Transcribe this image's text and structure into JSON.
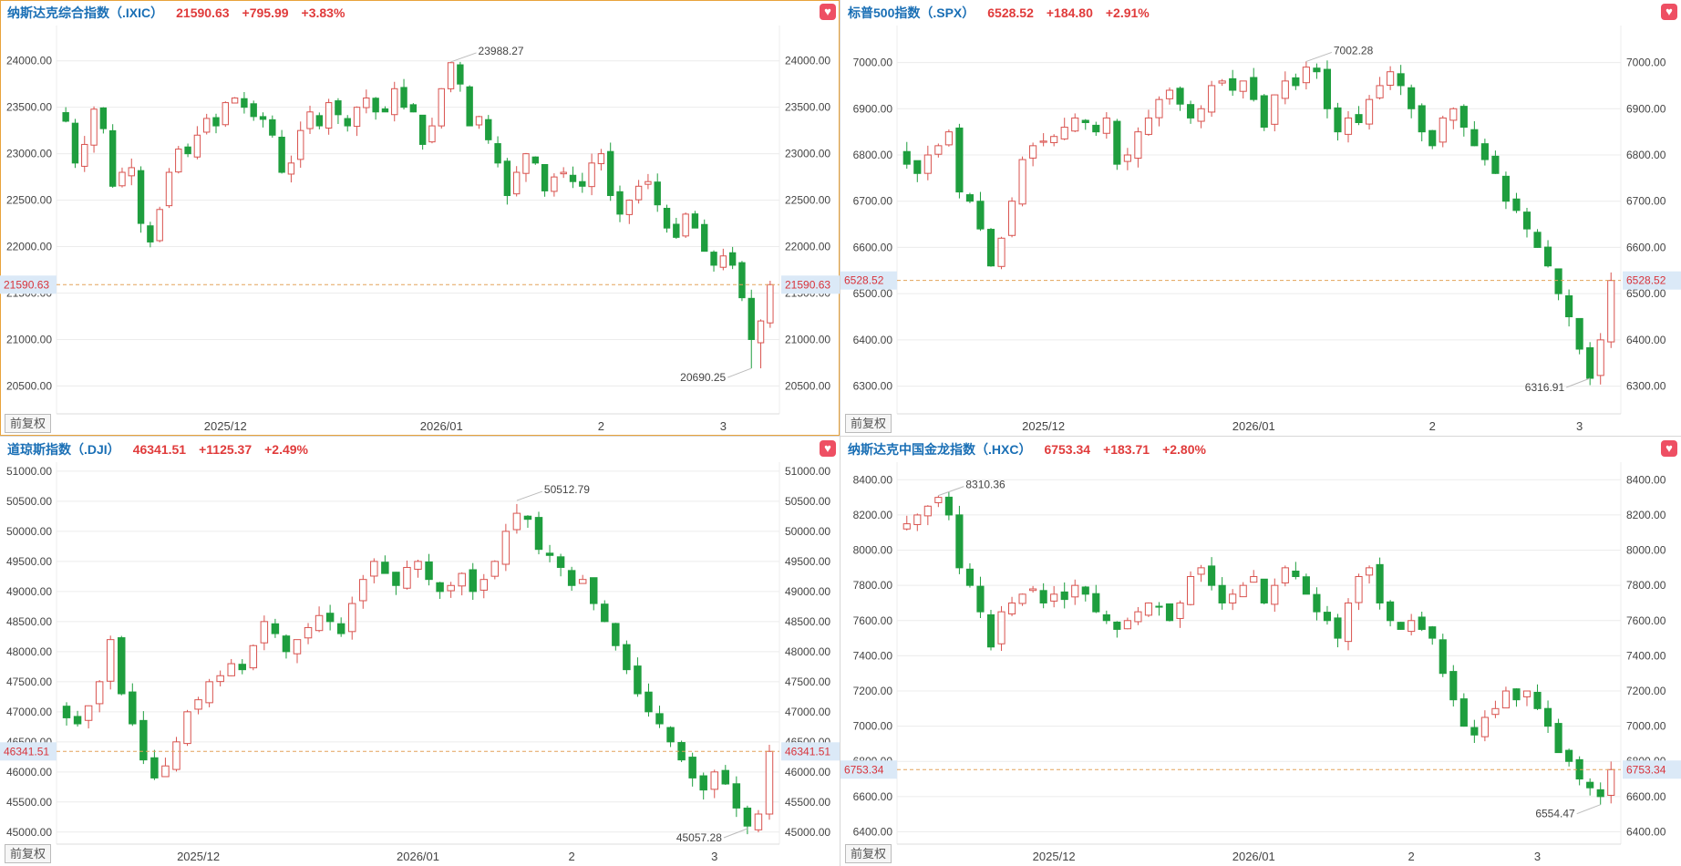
{
  "colors": {
    "up": "#d9534f",
    "down": "#1e9e3e",
    "accent": "#1a6fb5",
    "price_text": "#e03b3b",
    "grid": "#ececec",
    "current_line": "#e3a25a",
    "selected_border": "#e8a33c"
  },
  "controls": {
    "adjust_label": "前复权",
    "favorite_icon": "heart-icon"
  },
  "panels": [
    {
      "header": {
        "name": "纳斯达克综合指数（.IXIC）",
        "price": "21590.63",
        "change": "+795.99",
        "percent": "+3.83%"
      },
      "chart_data": {
        "type": "candlestick",
        "x_labels": [
          "2025/12",
          "2026/01",
          "2",
          "3"
        ],
        "y_ticks": [
          "24000.00",
          "23500.00",
          "23000.00",
          "22500.00",
          "22000.00",
          "21500.00",
          "21000.00",
          "20500.00"
        ],
        "ylim": [
          20200,
          24380
        ],
        "current": 21590.63,
        "current_label": "21590.63",
        "high": 23988.27,
        "high_label": "23988.27",
        "low": 20690.25,
        "low_label": "20690.25",
        "closes": [
          23350,
          22900,
          23100,
          23480,
          23270,
          22650,
          22800,
          22850,
          22250,
          22050,
          22400,
          22800,
          23050,
          23000,
          23200,
          23380,
          23300,
          23550,
          23600,
          23500,
          23400,
          23370,
          23200,
          22800,
          22900,
          23250,
          23450,
          23300,
          23550,
          23420,
          23300,
          23500,
          23600,
          23450,
          23450,
          23700,
          23500,
          23450,
          23100,
          23300,
          23700,
          23980,
          23750,
          23300,
          23400,
          23150,
          22900,
          22550,
          22800,
          23000,
          22900,
          22600,
          22750,
          22800,
          22700,
          22650,
          22900,
          23000,
          22550,
          22350,
          22500,
          22650,
          22700,
          22450,
          22200,
          22100,
          22350,
          22200,
          21950,
          21800,
          21900,
          21800,
          21450,
          21000,
          21200,
          21590.63
        ],
        "x_label_index": [
          17,
          40,
          57,
          70
        ]
      }
    },
    {
      "header": {
        "name": "标普500指数（.SPX）",
        "price": "6528.52",
        "change": "+184.80",
        "percent": "+2.91%"
      },
      "chart_data": {
        "type": "candlestick",
        "x_labels": [
          "2025/12",
          "2026/01",
          "2",
          "3"
        ],
        "y_ticks": [
          "7000.00",
          "6900.00",
          "6800.00",
          "6700.00",
          "6600.00",
          "6500.00",
          "6400.00",
          "6300.00"
        ],
        "ylim": [
          6240,
          7080
        ],
        "current": 6528.52,
        "current_label": "6528.52",
        "high": 7002.28,
        "high_label": "7002.28",
        "low": 6316.91,
        "low_label": "6316.91",
        "closes": [
          6780,
          6760,
          6800,
          6820,
          6850,
          6720,
          6700,
          6640,
          6560,
          6620,
          6700,
          6790,
          6820,
          6830,
          6840,
          6860,
          6880,
          6870,
          6850,
          6880,
          6780,
          6800,
          6850,
          6880,
          6920,
          6940,
          6910,
          6880,
          6900,
          6950,
          6960,
          6940,
          6960,
          6920,
          6860,
          6930,
          6960,
          6950,
          6990,
          6980,
          6900,
          6850,
          6880,
          6870,
          6920,
          6950,
          6980,
          6950,
          6900,
          6850,
          6820,
          6880,
          6900,
          6860,
          6820,
          6790,
          6760,
          6700,
          6680,
          6640,
          6600,
          6560,
          6500,
          6450,
          6380,
          6316.91,
          6400,
          6528.52
        ],
        "x_label_index": [
          13,
          33,
          50,
          64
        ]
      }
    },
    {
      "header": {
        "name": "道琼斯指数（.DJI）",
        "price": "46341.51",
        "change": "+1125.37",
        "percent": "+2.49%"
      },
      "chart_data": {
        "type": "candlestick",
        "x_labels": [
          "2025/12",
          "2026/01",
          "2",
          "3"
        ],
        "y_ticks": [
          "51000.00",
          "50500.00",
          "50000.00",
          "49500.00",
          "49000.00",
          "48500.00",
          "48000.00",
          "47500.00",
          "47000.00",
          "46500.00",
          "46000.00",
          "45500.00",
          "45000.00"
        ],
        "ylim": [
          44800,
          51150
        ],
        "current": 46341.51,
        "current_label": "46341.51",
        "high": 50512.79,
        "high_label": "50512.79",
        "low": 45057.28,
        "low_label": "45057.28",
        "closes": [
          46900,
          46800,
          47100,
          47500,
          48200,
          47300,
          46800,
          46200,
          45900,
          46100,
          46500,
          47000,
          47200,
          47500,
          47600,
          47800,
          47700,
          48100,
          48500,
          48300,
          48000,
          48200,
          48400,
          48600,
          48500,
          48300,
          48800,
          49200,
          49500,
          49300,
          49100,
          49400,
          49500,
          49200,
          49000,
          49100,
          49300,
          49000,
          49200,
          49500,
          50000,
          50300,
          50200,
          49700,
          49600,
          49400,
          49100,
          49200,
          48800,
          48500,
          48100,
          47700,
          47300,
          47000,
          46800,
          46500,
          46200,
          45900,
          45700,
          46000,
          45800,
          45400,
          45100,
          45300,
          46341.51
        ],
        "x_label_index": [
          12,
          32,
          46,
          59
        ]
      }
    },
    {
      "header": {
        "name": "纳斯达克中国金龙指数（.HXC）",
        "price": "6753.34",
        "change": "+183.71",
        "percent": "+2.80%"
      },
      "chart_data": {
        "type": "candlestick",
        "x_labels": [
          "2025/12",
          "2026/01",
          "2",
          "3"
        ],
        "y_ticks": [
          "8400.00",
          "8200.00",
          "8000.00",
          "7800.00",
          "7600.00",
          "7400.00",
          "7200.00",
          "7000.00",
          "6800.00",
          "6600.00",
          "6400.00"
        ],
        "ylim": [
          6330,
          8500
        ],
        "current": 6753.34,
        "current_label": "6753.34",
        "high": 8310.36,
        "high_label": "8310.36",
        "low": 6554.47,
        "low_label": "6554.47",
        "closes": [
          8150,
          8200,
          8250,
          8300,
          8200,
          7900,
          7800,
          7650,
          7450,
          7650,
          7700,
          7750,
          7780,
          7700,
          7750,
          7720,
          7800,
          7750,
          7650,
          7600,
          7550,
          7600,
          7650,
          7700,
          7680,
          7600,
          7700,
          7850,
          7900,
          7800,
          7700,
          7750,
          7800,
          7850,
          7700,
          7800,
          7900,
          7850,
          7750,
          7650,
          7600,
          7500,
          7700,
          7850,
          7900,
          7700,
          7600,
          7550,
          7600,
          7550,
          7500,
          7300,
          7150,
          7000,
          6950,
          7050,
          7100,
          7200,
          7150,
          7200,
          7100,
          7000,
          6850,
          6800,
          6700,
          6650,
          6600,
          6753.34
        ],
        "x_label_index": [
          14,
          33,
          48,
          60
        ]
      }
    }
  ]
}
